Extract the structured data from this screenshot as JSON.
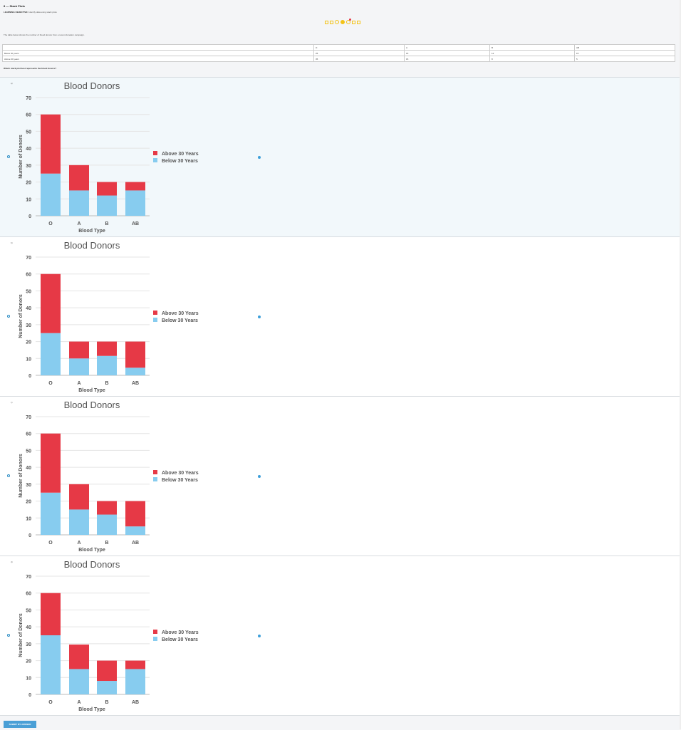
{
  "header": {
    "title": "8 — Stack Plots",
    "objective_label": "LEARNING OBJECTIVE:",
    "objective_text": "Identify data using stack plots",
    "description": "The table below shows the number of blood donors from a recent donation campaign."
  },
  "table": {
    "columns": [
      "",
      "O",
      "A",
      "B",
      "AB"
    ],
    "rows": [
      [
        "Below 30 years",
        "25",
        "15",
        "12",
        "15"
      ],
      [
        "Above 30 years",
        "35",
        "15",
        "8",
        "5"
      ]
    ]
  },
  "question": "Which stack plot best represents the blood donors?",
  "options": [
    {
      "letter": "a)",
      "selected": true
    },
    {
      "letter": "b)",
      "selected": false
    },
    {
      "letter": "c)",
      "selected": false
    },
    {
      "letter": "d)",
      "selected": false
    }
  ],
  "colors": {
    "above": "#e63946",
    "below": "#87ccef"
  },
  "chart_data": [
    {
      "type": "bar",
      "title": "Blood Donors",
      "xlabel": "Blood Type",
      "ylabel": "Number of Donors",
      "categories": [
        "O",
        "A",
        "B",
        "AB"
      ],
      "ylim": [
        0,
        70
      ],
      "yticks": [
        0,
        10,
        20,
        30,
        40,
        50,
        60,
        70
      ],
      "series": [
        {
          "name": "Below 30 Years",
          "values": [
            25,
            15,
            12,
            15
          ]
        },
        {
          "name": "Above 30 Years",
          "values": [
            35,
            15,
            8,
            5
          ]
        }
      ],
      "legend": [
        "Above 30 Years",
        "Below 30 Years"
      ]
    },
    {
      "type": "bar",
      "title": "Blood Donors",
      "xlabel": "Blood Type",
      "ylabel": "Number of Donors",
      "categories": [
        "O",
        "A",
        "B",
        "AB"
      ],
      "ylim": [
        0,
        70
      ],
      "yticks": [
        0,
        10,
        20,
        30,
        40,
        50,
        60,
        70
      ],
      "series": [
        {
          "name": "Below 30 Years",
          "values": [
            25,
            10,
            11.5,
            4.5
          ]
        },
        {
          "name": "Above 30 Years",
          "values": [
            35,
            10,
            8.5,
            15.5
          ]
        }
      ],
      "legend": [
        "Above 30 Years",
        "Below 30 Years"
      ]
    },
    {
      "type": "bar",
      "title": "Blood Donors",
      "xlabel": "Blood Type",
      "ylabel": "Number of Donors",
      "categories": [
        "O",
        "A",
        "B",
        "AB"
      ],
      "ylim": [
        0,
        70
      ],
      "yticks": [
        0,
        10,
        20,
        30,
        40,
        50,
        60,
        70
      ],
      "series": [
        {
          "name": "Below 30 Years",
          "values": [
            25,
            15,
            12,
            5
          ]
        },
        {
          "name": "Above 30 Years",
          "values": [
            35,
            15,
            8,
            15
          ]
        }
      ],
      "legend": [
        "Above 30 Years",
        "Below 30 Years"
      ]
    },
    {
      "type": "bar",
      "title": "Blood Donors",
      "xlabel": "Blood Type",
      "ylabel": "Number of Donors",
      "categories": [
        "O",
        "A",
        "B",
        "AB"
      ],
      "ylim": [
        0,
        70
      ],
      "yticks": [
        0,
        10,
        20,
        30,
        40,
        50,
        60,
        70
      ],
      "series": [
        {
          "name": "Below 30 Years",
          "values": [
            35,
            15,
            8,
            15
          ]
        },
        {
          "name": "Above 30 Years",
          "values": [
            25,
            14.5,
            12,
            5
          ]
        }
      ],
      "legend": [
        "Above 30 Years",
        "Below 30 Years"
      ]
    }
  ],
  "footer": {
    "submit_label": "SUBMIT MY ANSWER"
  }
}
